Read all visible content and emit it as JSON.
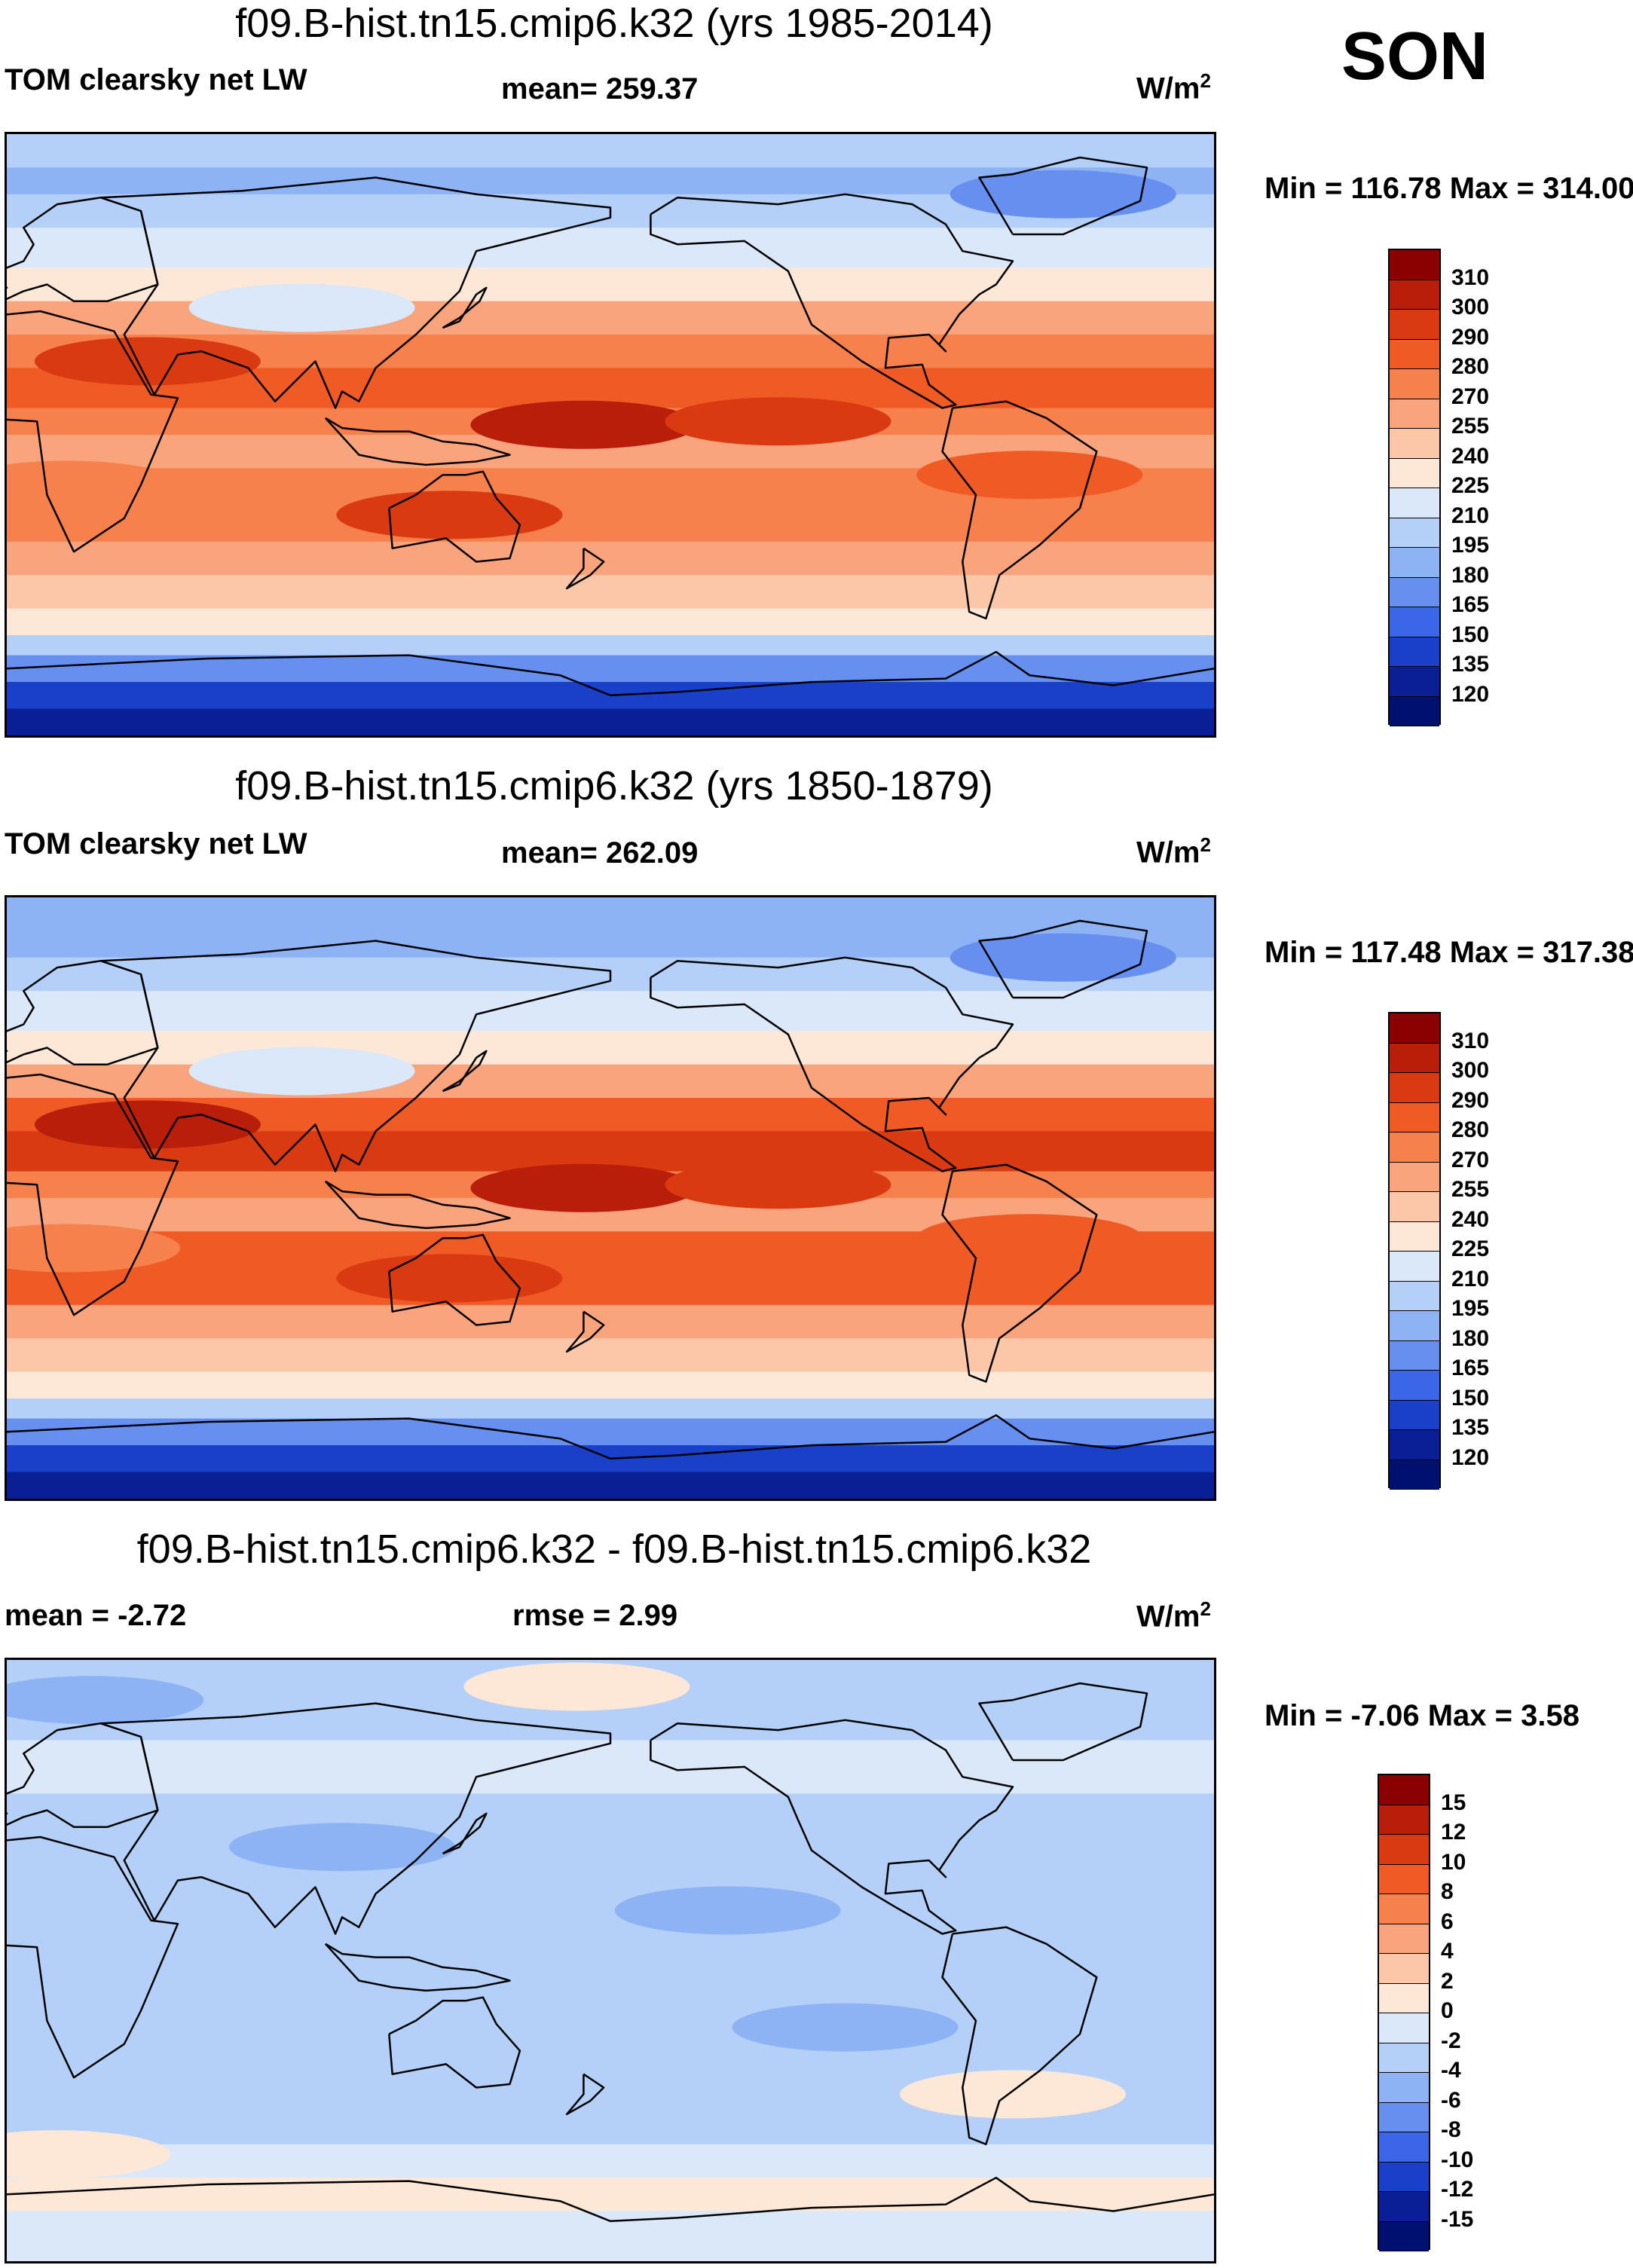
{
  "season": "SON",
  "units_base": "W/m",
  "units_sup": "2",
  "chart_data": [
    {
      "type": "heatmap",
      "title": "f09.B-hist.tn15.cmip6.k32 (yrs 1985-2014)",
      "left_label": "TOM clearsky net LW",
      "center_label": "mean= 259.37",
      "minmax": "Min = 116.78 Max = 314.00",
      "field": "mean",
      "colorbar": {
        "labels": [
          "310",
          "300",
          "290",
          "280",
          "270",
          "255",
          "240",
          "225",
          "210",
          "195",
          "180",
          "165",
          "150",
          "135",
          "120"
        ],
        "colors": [
          "#8b0000",
          "#b81e0a",
          "#d93a12",
          "#f05a24",
          "#f6814c",
          "#f9a47c",
          "#fcc7a9",
          "#fde8d8",
          "#dbe8fa",
          "#b4cff8",
          "#8eb3f5",
          "#668ff0",
          "#3c66e8",
          "#1a3fc9",
          "#0a1f96",
          "#001070"
        ]
      },
      "bands": [
        {
          "lat": 90,
          "value": 195
        },
        {
          "lat": 80,
          "value": 180
        },
        {
          "lat": 72,
          "value": 205
        },
        {
          "lat": 62,
          "value": 218
        },
        {
          "lat": 50,
          "value": 238
        },
        {
          "lat": 40,
          "value": 258
        },
        {
          "lat": 30,
          "value": 278
        },
        {
          "lat": 20,
          "value": 285
        },
        {
          "lat": 8,
          "value": 270
        },
        {
          "lat": 0,
          "value": 262
        },
        {
          "lat": -10,
          "value": 275
        },
        {
          "lat": -22,
          "value": 278
        },
        {
          "lat": -32,
          "value": 258
        },
        {
          "lat": -42,
          "value": 240
        },
        {
          "lat": -52,
          "value": 225
        },
        {
          "lat": -60,
          "value": 205
        },
        {
          "lat": -66,
          "value": 175
        },
        {
          "lat": -74,
          "value": 145
        },
        {
          "lat": -82,
          "value": 128
        },
        {
          "lat": -90,
          "value": 120
        }
      ],
      "blobs": [
        {
          "lon": 172,
          "lat": 3,
          "value": 300
        },
        {
          "lon": 230,
          "lat": 4,
          "value": 292
        },
        {
          "lon": 88,
          "lat": 38,
          "value": 218
        },
        {
          "lon": 315,
          "lat": 72,
          "value": 168
        },
        {
          "lon": 42,
          "lat": 22,
          "value": 298
        },
        {
          "lon": 132,
          "lat": -24,
          "value": 292
        },
        {
          "lon": 305,
          "lat": -12,
          "value": 280
        },
        {
          "lon": 18,
          "lat": -15,
          "value": 272
        }
      ]
    },
    {
      "type": "heatmap",
      "title": "f09.B-hist.tn15.cmip6.k32 (yrs 1850-1879)",
      "left_label": "TOM clearsky net LW",
      "center_label": "mean= 262.09",
      "minmax": "Min = 117.48 Max = 317.38",
      "field": "mean",
      "colorbar": {
        "labels": [
          "310",
          "300",
          "290",
          "280",
          "270",
          "255",
          "240",
          "225",
          "210",
          "195",
          "180",
          "165",
          "150",
          "135",
          "120"
        ],
        "colors": [
          "#8b0000",
          "#b81e0a",
          "#d93a12",
          "#f05a24",
          "#f6814c",
          "#f9a47c",
          "#fcc7a9",
          "#fde8d8",
          "#dbe8fa",
          "#b4cff8",
          "#8eb3f5",
          "#668ff0",
          "#3c66e8",
          "#1a3fc9",
          "#0a1f96",
          "#001070"
        ]
      },
      "bands": [
        {
          "lat": 90,
          "value": 192
        },
        {
          "lat": 80,
          "value": 180
        },
        {
          "lat": 72,
          "value": 202
        },
        {
          "lat": 62,
          "value": 215
        },
        {
          "lat": 50,
          "value": 236
        },
        {
          "lat": 40,
          "value": 262
        },
        {
          "lat": 30,
          "value": 285
        },
        {
          "lat": 20,
          "value": 290
        },
        {
          "lat": 8,
          "value": 276
        },
        {
          "lat": 0,
          "value": 268
        },
        {
          "lat": -10,
          "value": 282
        },
        {
          "lat": -22,
          "value": 284
        },
        {
          "lat": -32,
          "value": 262
        },
        {
          "lat": -42,
          "value": 244
        },
        {
          "lat": -52,
          "value": 227
        },
        {
          "lat": -60,
          "value": 205
        },
        {
          "lat": -66,
          "value": 174
        },
        {
          "lat": -74,
          "value": 143
        },
        {
          "lat": -82,
          "value": 127
        },
        {
          "lat": -90,
          "value": 120
        }
      ],
      "blobs": [
        {
          "lon": 172,
          "lat": 3,
          "value": 303
        },
        {
          "lon": 230,
          "lat": 4,
          "value": 295
        },
        {
          "lon": 88,
          "lat": 38,
          "value": 222
        },
        {
          "lon": 315,
          "lat": 72,
          "value": 170
        },
        {
          "lon": 42,
          "lat": 22,
          "value": 305
        },
        {
          "lon": 132,
          "lat": -24,
          "value": 298
        },
        {
          "lon": 305,
          "lat": -12,
          "value": 284
        },
        {
          "lon": 18,
          "lat": -15,
          "value": 276
        }
      ]
    },
    {
      "type": "heatmap",
      "title": "f09.B-hist.tn15.cmip6.k32 - f09.B-hist.tn15.cmip6.k32",
      "left_label": "mean =  -2.72",
      "center_label": "rmse =   2.99",
      "minmax": "Min =  -7.06 Max =   3.58",
      "field": "diff",
      "colorbar": {
        "labels": [
          "15",
          "12",
          "10",
          "8",
          "6",
          "4",
          "2",
          "0",
          "-2",
          "-4",
          "-6",
          "-8",
          "-10",
          "-12",
          "-15"
        ],
        "colors": [
          "#8b0000",
          "#b81e0a",
          "#d93a12",
          "#f05a24",
          "#f6814c",
          "#f9a47c",
          "#fcc7a9",
          "#fde8d8",
          "#dbe8fa",
          "#b4cff8",
          "#8eb3f5",
          "#668ff0",
          "#3c66e8",
          "#1a3fc9",
          "#0a1f96",
          "#001070"
        ]
      },
      "bands": [
        {
          "lat": 90,
          "value": -2.5
        },
        {
          "lat": 78,
          "value": -3.5
        },
        {
          "lat": 66,
          "value": -1.5
        },
        {
          "lat": 50,
          "value": -2.5
        },
        {
          "lat": 30,
          "value": -3.2
        },
        {
          "lat": 10,
          "value": -3.0
        },
        {
          "lat": 0,
          "value": -3.4
        },
        {
          "lat": -20,
          "value": -3.0
        },
        {
          "lat": -40,
          "value": -2.6
        },
        {
          "lat": -55,
          "value": -1.8
        },
        {
          "lat": -65,
          "value": 0.5
        },
        {
          "lat": -75,
          "value": -1.0
        },
        {
          "lat": -90,
          "value": -1.2
        }
      ],
      "blobs": [
        {
          "lon": 170,
          "lat": 82,
          "value": 1.5
        },
        {
          "lon": 25,
          "lat": 78,
          "value": -4.8
        },
        {
          "lon": 215,
          "lat": 15,
          "value": -5.0
        },
        {
          "lon": 100,
          "lat": 34,
          "value": -4.2
        },
        {
          "lon": 300,
          "lat": -40,
          "value": 1.0
        },
        {
          "lon": 15,
          "lat": -58,
          "value": 1.5
        },
        {
          "lon": 250,
          "lat": -20,
          "value": -4.6
        }
      ]
    }
  ],
  "coastlines": [
    {
      "name": "Africa",
      "points": [
        [
          -17,
          21
        ],
        [
          -10,
          35
        ],
        [
          10,
          37
        ],
        [
          32,
          31
        ],
        [
          43,
          12
        ],
        [
          51,
          11
        ],
        [
          40,
          -15
        ],
        [
          35,
          -25
        ],
        [
          20,
          -35
        ],
        [
          12,
          -18
        ],
        [
          9,
          4
        ],
        [
          -8,
          5
        ],
        [
          -17,
          14
        ],
        [
          -17,
          21
        ]
      ]
    },
    {
      "name": "Europe",
      "points": [
        [
          -10,
          36
        ],
        [
          -9,
          43
        ],
        [
          0,
          44
        ],
        [
          -5,
          48
        ],
        [
          5,
          52
        ],
        [
          8,
          57
        ],
        [
          5,
          62
        ],
        [
          15,
          69
        ],
        [
          28,
          71
        ],
        [
          40,
          67
        ],
        [
          45,
          45
        ],
        [
          30,
          40
        ],
        [
          20,
          40
        ],
        [
          12,
          45
        ],
        [
          5,
          43
        ],
        [
          -10,
          36
        ]
      ]
    },
    {
      "name": "Asia",
      "points": [
        [
          28,
          71
        ],
        [
          70,
          73
        ],
        [
          110,
          77
        ],
        [
          140,
          72
        ],
        [
          180,
          68
        ],
        [
          180,
          65
        ],
        [
          160,
          60
        ],
        [
          140,
          55
        ],
        [
          135,
          43
        ],
        [
          122,
          30
        ],
        [
          110,
          20
        ],
        [
          105,
          10
        ],
        [
          100,
          13
        ],
        [
          98,
          8
        ],
        [
          92,
          22
        ],
        [
          80,
          10
        ],
        [
          72,
          20
        ],
        [
          58,
          25
        ],
        [
          51,
          24
        ],
        [
          44,
          12
        ],
        [
          35,
          30
        ],
        [
          45,
          45
        ],
        [
          40,
          67
        ],
        [
          28,
          71
        ]
      ]
    },
    {
      "name": "Japan",
      "points": [
        [
          130,
          32
        ],
        [
          135,
          35
        ],
        [
          141,
          40
        ],
        [
          143,
          44
        ],
        [
          140,
          42
        ],
        [
          135,
          34
        ],
        [
          130,
          32
        ]
      ]
    },
    {
      "name": "Indonesia",
      "points": [
        [
          95,
          5
        ],
        [
          105,
          -6
        ],
        [
          115,
          -8
        ],
        [
          125,
          -9
        ],
        [
          140,
          -8
        ],
        [
          150,
          -6
        ],
        [
          140,
          -3
        ],
        [
          130,
          -2
        ],
        [
          120,
          1
        ],
        [
          110,
          1
        ],
        [
          100,
          2
        ],
        [
          95,
          5
        ]
      ]
    },
    {
      "name": "Australia",
      "points": [
        [
          114,
          -22
        ],
        [
          122,
          -18
        ],
        [
          130,
          -12
        ],
        [
          137,
          -12
        ],
        [
          142,
          -11
        ],
        [
          146,
          -19
        ],
        [
          153,
          -27
        ],
        [
          150,
          -37
        ],
        [
          140,
          -38
        ],
        [
          131,
          -31
        ],
        [
          115,
          -34
        ],
        [
          114,
          -22
        ]
      ]
    },
    {
      "name": "NewZealand",
      "points": [
        [
          172,
          -34
        ],
        [
          178,
          -38
        ],
        [
          174,
          -42
        ],
        [
          167,
          -46
        ],
        [
          172,
          -40
        ],
        [
          172,
          -34
        ]
      ]
    },
    {
      "name": "NorthAmerica",
      "points": [
        [
          192,
          66
        ],
        [
          200,
          71
        ],
        [
          230,
          69
        ],
        [
          250,
          72
        ],
        [
          270,
          69
        ],
        [
          280,
          63
        ],
        [
          285,
          55
        ],
        [
          300,
          52
        ],
        [
          295,
          45
        ],
        [
          290,
          42
        ],
        [
          284,
          36
        ],
        [
          278,
          27
        ],
        [
          280,
          25
        ],
        [
          275,
          30
        ],
        [
          263,
          29
        ],
        [
          262,
          20
        ],
        [
          273,
          21
        ],
        [
          275,
          15
        ],
        [
          283,
          9
        ],
        [
          279,
          8
        ],
        [
          265,
          16
        ],
        [
          255,
          22
        ],
        [
          240,
          33
        ],
        [
          236,
          42
        ],
        [
          233,
          49
        ],
        [
          220,
          58
        ],
        [
          200,
          57
        ],
        [
          192,
          60
        ],
        [
          192,
          66
        ]
      ]
    },
    {
      "name": "Greenland",
      "points": [
        [
          300,
          60
        ],
        [
          315,
          60
        ],
        [
          338,
          70
        ],
        [
          340,
          80
        ],
        [
          320,
          83
        ],
        [
          300,
          78
        ],
        [
          290,
          77
        ],
        [
          300,
          60
        ]
      ]
    },
    {
      "name": "SouthAmerica",
      "points": [
        [
          282,
          8
        ],
        [
          298,
          10
        ],
        [
          310,
          5
        ],
        [
          325,
          -5
        ],
        [
          320,
          -22
        ],
        [
          308,
          -33
        ],
        [
          296,
          -42
        ],
        [
          292,
          -55
        ],
        [
          287,
          -53
        ],
        [
          285,
          -38
        ],
        [
          289,
          -18
        ],
        [
          279,
          -5
        ],
        [
          282,
          8
        ]
      ]
    },
    {
      "name": "Antarctica",
      "points": [
        [
          0,
          -70
        ],
        [
          60,
          -67
        ],
        [
          120,
          -66
        ],
        [
          165,
          -72
        ],
        [
          180,
          -78
        ],
        [
          200,
          -77
        ],
        [
          240,
          -74
        ],
        [
          280,
          -73
        ],
        [
          295,
          -65
        ],
        [
          305,
          -72
        ],
        [
          330,
          -75
        ],
        [
          360,
          -70
        ]
      ]
    }
  ]
}
